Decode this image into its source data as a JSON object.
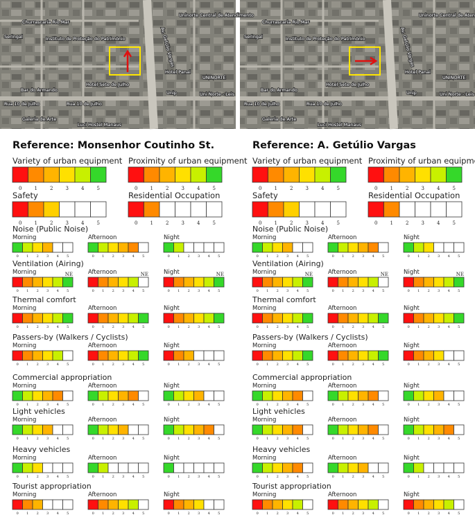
{
  "scale_ticks": [
    0,
    1,
    2,
    3,
    4,
    5
  ],
  "panels": [
    {
      "map": {
        "labels": [
          "Seringal",
          "Churrascaria Rio Mar",
          "Instituto de Proteção do Patrimônio",
          "Uninorte Central de Atendimento",
          "Hotel Panai",
          "UNINORTE",
          "Hotel Sete de Julho",
          "Unip",
          "Uni Norte - Leis",
          "Bar do Armando",
          "Rua 10 de Julho",
          "Rua 10 de Julho",
          "Galeria de Arte",
          "Luci Hostel Manaus",
          "Av. Getúlio Vargas"
        ]
      },
      "title": "Reference: Monsenhor Coutinho St.",
      "summary": [
        {
          "name": "Variety of urban equipment",
          "colors": [
            "#ff1010",
            "#ff8a00",
            "#ffb400",
            "#ffe000",
            "#c8f000",
            "#35d82a"
          ]
        },
        {
          "name": "Proximity of urban equipment",
          "colors": [
            "#ff1010",
            "#ff8a00",
            "#ffb400",
            "#ffe000",
            "#c8f000",
            "#35d82a"
          ]
        },
        {
          "name": "Safety",
          "colors": [
            "#ff1010",
            "#ff8a00",
            "#ffd000",
            null,
            null,
            null
          ]
        },
        {
          "name": "Residential Occupation",
          "colors": [
            "#ff1010",
            "#ff8a00",
            null,
            null,
            null,
            null
          ]
        }
      ],
      "sections": [
        {
          "name": "Noise (Public Noise)",
          "periods": [
            {
              "name": "Morning",
              "colors": [
                "#35d82a",
                "#c8f000",
                "#ffe000",
                "#ffb400",
                null,
                null
              ]
            },
            {
              "name": "Afternoon",
              "colors": [
                "#35d82a",
                "#c8f000",
                "#ffe000",
                "#ffb400",
                "#ff8a00",
                null
              ]
            },
            {
              "name": "Night",
              "colors": [
                "#35d82a",
                "#c8f000",
                null,
                null,
                null,
                null
              ]
            }
          ]
        },
        {
          "name": "Ventilation (Airing)",
          "periods": [
            {
              "name": "Morning",
              "note": "NE",
              "colors": [
                "#ff1010",
                "#ff8a00",
                "#ffb400",
                "#ffe000",
                "#c8f000",
                "#35d82a"
              ]
            },
            {
              "name": "Afternoon",
              "note": "NE",
              "colors": [
                "#ff1010",
                "#ff8a00",
                "#ffb400",
                "#ffe000",
                "#c8f000",
                null
              ]
            },
            {
              "name": "Night",
              "note": "NE",
              "colors": [
                "#ff1010",
                "#ff8a00",
                "#ffb400",
                "#ffe000",
                "#c8f000",
                "#35d82a"
              ]
            }
          ]
        },
        {
          "name": "Thermal comfort",
          "periods": [
            {
              "name": "Morning",
              "colors": [
                "#ff1010",
                "#ff8a00",
                "#ffb400",
                "#ffe000",
                "#c8f000",
                "#35d82a"
              ]
            },
            {
              "name": "Afternoon",
              "colors": [
                "#ff1010",
                "#ff8a00",
                "#ffb400",
                "#ffe000",
                "#c8f000",
                "#35d82a"
              ]
            },
            {
              "name": "Night",
              "colors": [
                "#ff1010",
                "#ff8a00",
                "#ffb400",
                "#ffe000",
                "#c8f000",
                "#35d82a"
              ]
            }
          ]
        },
        {
          "name": "Passers-by (Walkers / Cyclists)",
          "periods": [
            {
              "name": "Morning",
              "colors": [
                "#ff1010",
                "#ff8a00",
                "#ffb400",
                "#ffe000",
                "#c8f000",
                null
              ]
            },
            {
              "name": "Afternoon",
              "colors": [
                "#ff1010",
                "#ff8a00",
                "#ffb400",
                "#ffe000",
                "#c8f000",
                "#35d82a"
              ]
            },
            {
              "name": "Night",
              "colors": [
                "#ff1010",
                "#ff8a00",
                "#ffb400",
                null,
                null,
                null
              ]
            }
          ]
        },
        {
          "name": "Commercial appropriation",
          "periods": [
            {
              "name": "Morning",
              "colors": [
                "#35d82a",
                "#c8f000",
                "#ffe000",
                "#ffb400",
                "#ff8a00",
                null
              ]
            },
            {
              "name": "Afternoon",
              "colors": [
                "#35d82a",
                "#c8f000",
                "#ffe000",
                "#ffb400",
                "#ff8a00",
                null
              ]
            },
            {
              "name": "Night",
              "colors": [
                "#35d82a",
                "#c8f000",
                "#ffe000",
                "#ffb400",
                null,
                null
              ]
            }
          ]
        },
        {
          "name": "Light vehicles",
          "periods": [
            {
              "name": "Morning",
              "colors": [
                "#35d82a",
                "#c8f000",
                "#ffe000",
                "#ffb400",
                null,
                null
              ]
            },
            {
              "name": "Afternoon",
              "colors": [
                "#35d82a",
                "#c8f000",
                "#ffe000",
                "#ffb400",
                null,
                null
              ]
            },
            {
              "name": "Night",
              "colors": [
                "#35d82a",
                "#c8f000",
                "#ffe000",
                "#ffb400",
                "#ff8a00",
                null
              ]
            }
          ]
        },
        {
          "name": "Heavy vehicles",
          "periods": [
            {
              "name": "Morning",
              "colors": [
                "#35d82a",
                "#c8f000",
                "#ffe000",
                null,
                null,
                null
              ]
            },
            {
              "name": "Afternoon",
              "colors": [
                "#35d82a",
                "#c8f000",
                null,
                null,
                null,
                null
              ]
            },
            {
              "name": "Night",
              "colors": [
                "#35d82a",
                null,
                null,
                null,
                null,
                null
              ]
            }
          ]
        },
        {
          "name": "Tourist appropriation",
          "periods": [
            {
              "name": "Morning",
              "colors": [
                "#ff1010",
                "#ff8a00",
                "#ffb400",
                null,
                null,
                null
              ]
            },
            {
              "name": "Afternoon",
              "colors": [
                "#ff1010",
                "#ff8a00",
                "#ffb400",
                "#ffe000",
                "#c8f000",
                null
              ]
            },
            {
              "name": "Night",
              "colors": [
                "#ff1010",
                "#ff8a00",
                "#ffb400",
                "#ffe000",
                null,
                null
              ]
            }
          ]
        }
      ]
    },
    {
      "map": {
        "labels": [
          "Seringal",
          "Churrascaria Rio Mar",
          "Instituto de Proteção do Patrimônio",
          "Uninorte Central de Atendimento",
          "Hotel Panai",
          "UNINORTE",
          "Hotel Sete de Julho",
          "Unip",
          "Uni Norte - Leis",
          "Bar do Armando",
          "Rua 10 de Julho",
          "Rua 10 de Julho",
          "Galeria de Arte",
          "Luci Hostel Manaus",
          "Av. Getúlio Vargas"
        ]
      },
      "title": "Reference: A. Getúlio Vargas",
      "summary": [
        {
          "name": "Variety of urban equipment",
          "colors": [
            "#ff1010",
            "#ff8a00",
            "#ffb400",
            "#ffe000",
            "#c8f000",
            "#35d82a"
          ]
        },
        {
          "name": "Proximity of urban equipment",
          "colors": [
            "#ff1010",
            "#ff8a00",
            "#ffb400",
            "#ffe000",
            "#c8f000",
            "#35d82a"
          ]
        },
        {
          "name": "Safety",
          "colors": [
            "#ff1010",
            "#ff8a00",
            "#ffd000",
            null,
            null,
            null
          ]
        },
        {
          "name": "Residential Occupation",
          "colors": [
            "#ff1010",
            "#ff8a00",
            null,
            null,
            null,
            null
          ]
        }
      ],
      "sections": [
        {
          "name": "Noise (Public Noise)",
          "periods": [
            {
              "name": "Morning",
              "colors": [
                "#35d82a",
                "#c8f000",
                "#ffe000",
                "#ffb400",
                null,
                null
              ]
            },
            {
              "name": "Afternoon",
              "colors": [
                "#35d82a",
                "#c8f000",
                "#ffe000",
                "#ffb400",
                "#ff8a00",
                null
              ]
            },
            {
              "name": "Night",
              "colors": [
                "#35d82a",
                "#c8f000",
                "#ffe000",
                null,
                null,
                null
              ]
            }
          ]
        },
        {
          "name": "Ventilation (Airing)",
          "periods": [
            {
              "name": "Morning",
              "note": "NE",
              "colors": [
                "#ff1010",
                "#ff8a00",
                "#ffb400",
                "#ffe000",
                "#c8f000",
                "#35d82a"
              ]
            },
            {
              "name": "Afternoon",
              "note": "NE",
              "colors": [
                "#ff1010",
                "#ff8a00",
                "#ffb400",
                "#ffe000",
                "#c8f000",
                null
              ]
            },
            {
              "name": "Night",
              "note": "NE",
              "colors": [
                "#ff1010",
                "#ff8a00",
                "#ffb400",
                "#ffe000",
                "#c8f000",
                "#35d82a"
              ]
            }
          ]
        },
        {
          "name": "Thermal comfort",
          "periods": [
            {
              "name": "Morning",
              "colors": [
                "#ff1010",
                "#ff8a00",
                "#ffb400",
                "#ffe000",
                "#c8f000",
                "#35d82a"
              ]
            },
            {
              "name": "Afternoon",
              "colors": [
                "#ff1010",
                "#ff8a00",
                "#ffb400",
                "#ffe000",
                "#c8f000",
                "#35d82a"
              ]
            },
            {
              "name": "Night",
              "colors": [
                "#ff1010",
                "#ff8a00",
                "#ffb400",
                "#ffe000",
                "#c8f000",
                "#35d82a"
              ]
            }
          ]
        },
        {
          "name": "Passers-by (Walkers / Cyclists)",
          "periods": [
            {
              "name": "Morning",
              "colors": [
                "#ff1010",
                "#ff8a00",
                "#ffb400",
                "#ffe000",
                "#c8f000",
                "#35d82a"
              ]
            },
            {
              "name": "Afternoon",
              "colors": [
                "#ff1010",
                "#ff8a00",
                "#ffb400",
                "#ffe000",
                "#c8f000",
                "#35d82a"
              ]
            },
            {
              "name": "Night",
              "colors": [
                "#ff1010",
                "#ff8a00",
                "#ffb400",
                "#ffe000",
                null,
                null
              ]
            }
          ]
        },
        {
          "name": "Commercial appropriation",
          "periods": [
            {
              "name": "Morning",
              "colors": [
                "#35d82a",
                "#c8f000",
                "#ffe000",
                "#ffb400",
                "#ff8a00",
                null
              ]
            },
            {
              "name": "Afternoon",
              "colors": [
                "#35d82a",
                "#c8f000",
                "#ffe000",
                "#ffb400",
                "#ff8a00",
                null
              ]
            },
            {
              "name": "Night",
              "colors": [
                "#35d82a",
                "#c8f000",
                "#ffe000",
                "#ffb400",
                null,
                null
              ]
            }
          ]
        },
        {
          "name": "Light vehicles",
          "periods": [
            {
              "name": "Morning",
              "colors": [
                "#35d82a",
                "#c8f000",
                "#ffe000",
                "#ffb400",
                "#ff8a00",
                null
              ]
            },
            {
              "name": "Afternoon",
              "colors": [
                "#35d82a",
                "#c8f000",
                "#ffe000",
                "#ffb400",
                "#ff8a00",
                null
              ]
            },
            {
              "name": "Night",
              "colors": [
                "#35d82a",
                "#c8f000",
                "#ffe000",
                "#ffb400",
                "#ff8a00",
                null
              ]
            }
          ]
        },
        {
          "name": "Heavy vehicles",
          "periods": [
            {
              "name": "Morning",
              "colors": [
                "#35d82a",
                "#c8f000",
                "#ffe000",
                "#ffb400",
                "#ff8a00",
                null
              ]
            },
            {
              "name": "Afternoon",
              "colors": [
                "#35d82a",
                "#c8f000",
                "#ffe000",
                "#ffb400",
                null,
                null
              ]
            },
            {
              "name": "Night",
              "colors": [
                "#35d82a",
                "#c8f000",
                null,
                null,
                null,
                null
              ]
            }
          ]
        },
        {
          "name": "Tourist appropriation",
          "periods": [
            {
              "name": "Morning",
              "colors": [
                "#ff1010",
                "#ff8a00",
                "#ffb400",
                "#ffe000",
                "#c8f000",
                null
              ]
            },
            {
              "name": "Afternoon",
              "colors": [
                "#ff1010",
                "#ff8a00",
                "#ffb400",
                "#ffe000",
                "#c8f000",
                null
              ]
            },
            {
              "name": "Night",
              "colors": [
                "#ff1010",
                "#ff8a00",
                "#ffb400",
                "#ffe000",
                "#c8f000",
                null
              ]
            }
          ]
        }
      ]
    }
  ]
}
